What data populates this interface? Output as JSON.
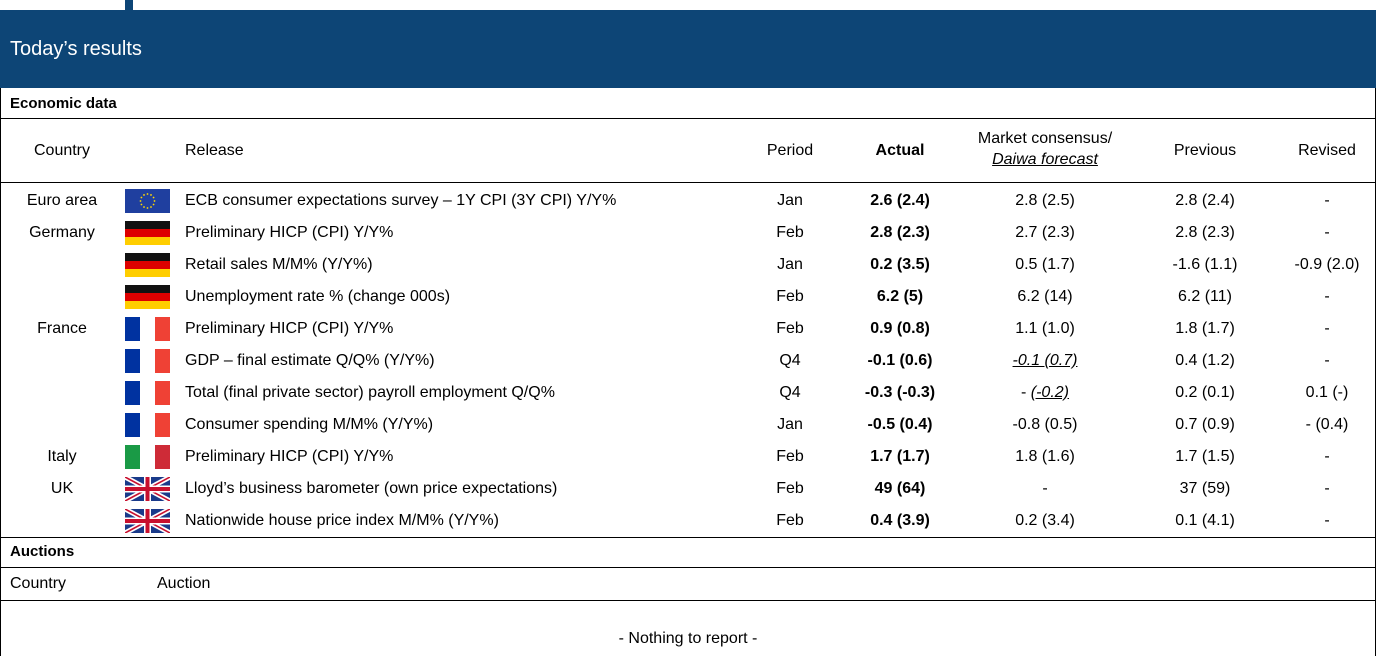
{
  "header": {
    "title": "Today’s results"
  },
  "economic": {
    "title": "Economic data",
    "columns": {
      "country": "Country",
      "release": "Release",
      "period": "Period",
      "actual": "Actual",
      "consensus": "Market consensus/",
      "forecast": "Daiwa forecast",
      "previous": "Previous",
      "revised": "Revised"
    },
    "groups": [
      {
        "country": "Euro area",
        "rows": [
          {
            "release": "ECB consumer expectations survey – 1Y CPI (3Y CPI) Y/Y%",
            "period": "Jan",
            "actual": "2.6 (2.4)",
            "consensus": "2.8 (2.5)",
            "previous": "2.8 (2.4)",
            "revised": "-"
          }
        ]
      },
      {
        "country": "Germany",
        "rows": [
          {
            "release": "Preliminary HICP (CPI) Y/Y%",
            "period": "Feb",
            "actual": "2.8 (2.3)",
            "consensus": "2.7 (2.3)",
            "previous": "2.8 (2.3)",
            "revised": "-"
          },
          {
            "release": "Retail sales M/M% (Y/Y%)",
            "period": "Jan",
            "actual": "0.2 (3.5)",
            "consensus": "0.5 (1.7)",
            "previous": "-1.6 (1.1)",
            "revised": "-0.9 (2.0)"
          },
          {
            "release": "Unemployment rate % (change 000s)",
            "period": "Feb",
            "actual": "6.2 (5)",
            "consensus": "6.2 (14)",
            "previous": "6.2 (11)",
            "revised": "-"
          }
        ]
      },
      {
        "country": "France",
        "rows": [
          {
            "release": "Preliminary HICP (CPI) Y/Y%",
            "period": "Feb",
            "actual": "0.9 (0.8)",
            "consensus": "1.1 (1.0)",
            "previous": "1.8 (1.7)",
            "revised": "-"
          },
          {
            "release": "GDP – final estimate Q/Q% (Y/Y%)",
            "period": "Q4",
            "actual": "-0.1 (0.6)",
            "forecast": "-0.1 (0.7)",
            "previous": "0.4 (1.2)",
            "revised": "-"
          },
          {
            "release": "Total (final private sector) payroll employment Q/Q%",
            "period": "Q4",
            "actual": "-0.3 (-0.3)",
            "consensus": "-",
            "forecast": "(-0.2)",
            "previous": "0.2 (0.1)",
            "revised": "0.1 (-)"
          },
          {
            "release": "Consumer spending M/M% (Y/Y%)",
            "period": "Jan",
            "actual": "-0.5 (0.4)",
            "consensus": "-0.8 (0.5)",
            "previous": "0.7 (0.9)",
            "revised": "- (0.4)"
          }
        ]
      },
      {
        "country": "Italy",
        "rows": [
          {
            "release": "Preliminary HICP (CPI) Y/Y%",
            "period": "Feb",
            "actual": "1.7 (1.7)",
            "consensus": "1.8 (1.6)",
            "previous": "1.7 (1.5)",
            "revised": "-"
          }
        ]
      },
      {
        "country": "UK",
        "rows": [
          {
            "release": "Lloyd’s business barometer (own price expectations)",
            "period": "Feb",
            "actual": "49 (64)",
            "consensus": "-",
            "previous": "37 (59)",
            "revised": "-"
          },
          {
            "release": "Nationwide house price index M/M% (Y/Y%)",
            "period": "Feb",
            "actual": "0.4 (3.9)",
            "consensus": "0.2 (3.4)",
            "previous": "0.1 (4.1)",
            "revised": "-"
          }
        ]
      }
    ]
  },
  "auctions": {
    "title": "Auctions",
    "columns": {
      "country": "Country",
      "auction": "Auction"
    },
    "note": "- Nothing to report -"
  }
}
